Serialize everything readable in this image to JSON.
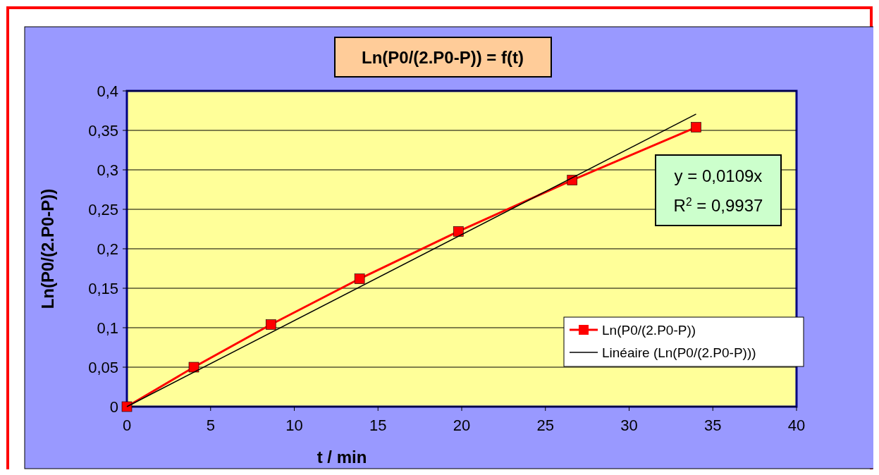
{
  "chart_data": {
    "type": "line",
    "title": "Ln(P0/(2.P0-P)) = f(t)",
    "xlabel": "t / min",
    "ylabel": "Ln(P0/(2.P0-P))",
    "xlim": [
      0,
      40
    ],
    "xticks": [
      0,
      5,
      10,
      15,
      20,
      25,
      30,
      35,
      40
    ],
    "ylim": [
      0,
      0.4
    ],
    "yticks": [
      0,
      {
        "value": 0.05,
        "label": "0,05"
      },
      {
        "value": 0.1,
        "label": "0,1"
      },
      {
        "value": 0.15,
        "label": "0,15"
      },
      {
        "value": 0.2,
        "label": "0,2"
      },
      {
        "value": 0.25,
        "label": "0,25"
      },
      {
        "value": 0.3,
        "label": "0,3"
      },
      {
        "value": 0.35,
        "label": "0,35"
      },
      {
        "value": 0.4,
        "label": "0,4"
      }
    ],
    "grid": "y",
    "legend": "bottom right",
    "marker": "square",
    "annotations": [
      "y = 0,0109x",
      "R$^{2}$ = 0,9937"
    ],
    "series": [
      {
        "name": "Ln(P0/(2.P0-P))",
        "color": "#ff0000",
        "x": [
          0,
          4,
          8.6,
          13.9,
          19.8,
          26.6,
          34
        ],
        "values": [
          0,
          0.05,
          0.104,
          0.162,
          0.222,
          0.287,
          0.354
        ]
      },
      {
        "name": "Linéaire (Ln(P0/(2.P0-P)))",
        "color": "#000000",
        "marker": "none",
        "x": [
          0,
          34
        ],
        "values": [
          0,
          0.3706
        ]
      }
    ]
  }
}
